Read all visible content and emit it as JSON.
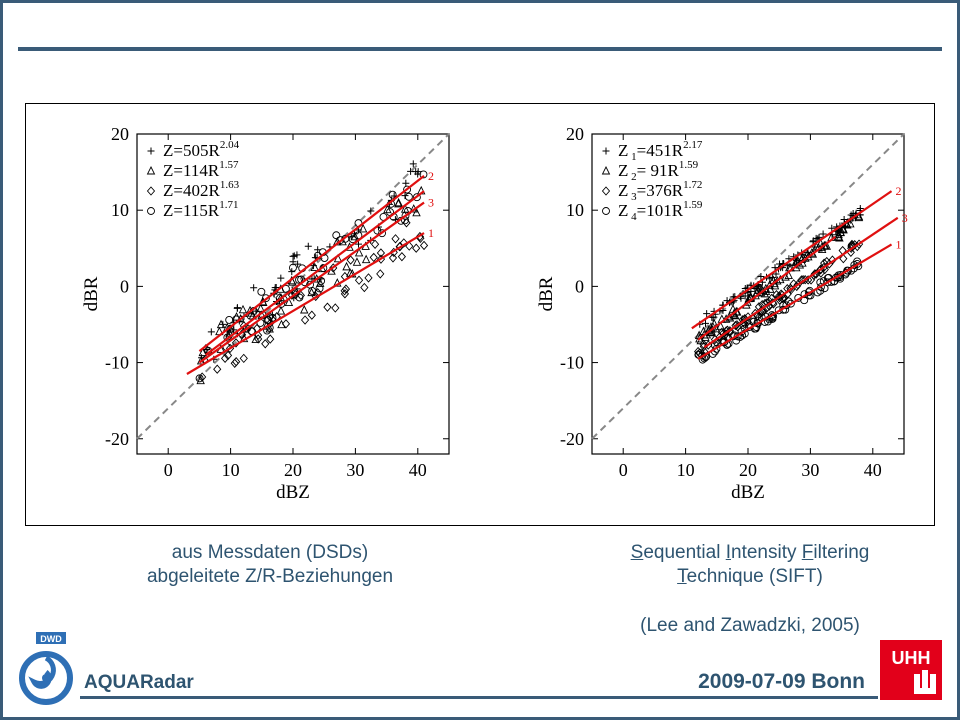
{
  "captions": {
    "left_line1": "aus Messdaten (DSDs)",
    "left_line2": "abgeleitete Z/R-Beziehungen",
    "right_parts_1": [
      {
        "t": "S",
        "u": true
      },
      {
        "t": "equential ",
        "u": false
      },
      {
        "t": "I",
        "u": true
      },
      {
        "t": "ntensity ",
        "u": false
      },
      {
        "t": "F",
        "u": true
      },
      {
        "t": "iltering",
        "u": false
      }
    ],
    "right_parts_2": [
      {
        "t": "T",
        "u": true
      },
      {
        "t": "echnique (SIFT)",
        "u": false
      }
    ],
    "reference": "(Lee and Zawadzki, 2005)"
  },
  "footer": {
    "project": "AQUARadar",
    "date_place": "2009-07-09 Bonn"
  },
  "logos": {
    "left": "DWD",
    "right": "UHH"
  },
  "colors": {
    "accent": "#3a5b78",
    "text": "#2e5470",
    "fit": "#e01010",
    "ref_line": "#888888",
    "uhh_red": "#e2001a"
  },
  "chart_data": [
    {
      "type": "scatter",
      "xlabel": "dBZ",
      "ylabel": "dBR",
      "xlim": [
        -5,
        45
      ],
      "ylim": [
        -22,
        20
      ],
      "xticks": [
        0,
        10,
        20,
        30,
        40
      ],
      "yticks": [
        -20,
        -10,
        0,
        10,
        20
      ],
      "legend_position": "top-left",
      "series": [
        {
          "symbol": "+",
          "label": "Z=505R",
          "exp": "2.04",
          "a": 505,
          "b": 2.04
        },
        {
          "symbol": "triangle",
          "label": "Z=114R",
          "exp": "1.57",
          "a": 114,
          "b": 1.57
        },
        {
          "symbol": "diamond",
          "label": "Z=402R",
          "exp": "1.63",
          "a": 402,
          "b": 1.63
        },
        {
          "symbol": "circle",
          "label": "Z=115R",
          "exp": "1.71",
          "a": 115,
          "b": 1.71
        }
      ],
      "fit_lines": [
        {
          "label": "2",
          "x": [
            5,
            41
          ],
          "y": [
            -8.5,
            14.5
          ]
        },
        {
          "label": "3",
          "x": [
            5,
            41
          ],
          "y": [
            -10.0,
            11.0
          ]
        },
        {
          "label": "1",
          "x": [
            3,
            41
          ],
          "y": [
            -11.5,
            7.0
          ]
        },
        {
          "label": "",
          "x": [
            6,
            41
          ],
          "y": [
            -9.0,
            12.5
          ]
        }
      ],
      "one_to_one_line": {
        "x": [
          -5,
          45
        ],
        "y": [
          -20,
          20
        ]
      },
      "point_cloud": {
        "x_range": [
          5,
          41
        ],
        "y_scatter": 3.0,
        "count_per_series": 60
      }
    },
    {
      "type": "scatter",
      "xlabel": "dBZ",
      "ylabel": "dBR",
      "xlim": [
        -5,
        45
      ],
      "ylim": [
        -22,
        20
      ],
      "xticks": [
        0,
        10,
        20,
        30,
        40
      ],
      "yticks": [
        -20,
        -10,
        0,
        10,
        20
      ],
      "legend_position": "top-left",
      "series": [
        {
          "symbol": "+",
          "label": "Z",
          "sub": "1",
          "rest": "=451R",
          "exp": "2.17"
        },
        {
          "symbol": "triangle",
          "label": "Z",
          "sub": "2",
          "rest": "= 91R",
          "exp": "1.59"
        },
        {
          "symbol": "diamond",
          "label": "Z",
          "sub": "3",
          "rest": "=376R",
          "exp": "1.72"
        },
        {
          "symbol": "circle",
          "label": "Z",
          "sub": "4",
          "rest": "=101R",
          "exp": "1.59"
        }
      ],
      "fit_lines": [
        {
          "label": "2",
          "x": [
            11,
            43
          ],
          "y": [
            -5.5,
            12.5
          ]
        },
        {
          "label": "",
          "x": [
            12,
            34
          ],
          "y": [
            -7.0,
            6.5
          ]
        },
        {
          "label": "3",
          "x": [
            13,
            44
          ],
          "y": [
            -8.0,
            9.0
          ]
        },
        {
          "label": "1",
          "x": [
            12,
            43
          ],
          "y": [
            -9.5,
            5.5
          ]
        }
      ],
      "one_to_one_line": {
        "x": [
          -5,
          45
        ],
        "y": [
          -20,
          20
        ]
      },
      "point_cloud": {
        "x_range": [
          12,
          38
        ],
        "y_scatter": 0.6,
        "count_per_series": 90
      }
    }
  ]
}
